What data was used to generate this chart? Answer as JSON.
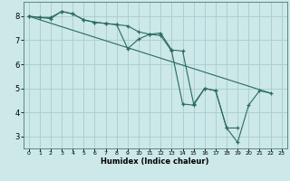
{
  "xlabel": "Humidex (Indice chaleur)",
  "xlim": [
    -0.5,
    23.5
  ],
  "ylim": [
    2.5,
    8.6
  ],
  "yticks": [
    3,
    4,
    5,
    6,
    7,
    8
  ],
  "xticks": [
    0,
    1,
    2,
    3,
    4,
    5,
    6,
    7,
    8,
    9,
    10,
    11,
    12,
    13,
    14,
    15,
    16,
    17,
    18,
    19,
    20,
    21,
    22,
    23
  ],
  "bg_color": "#cce8e8",
  "grid_color": "#aacccc",
  "line_color": "#2a6b5e",
  "line1_x": [
    0,
    1,
    2,
    3,
    4,
    5,
    6,
    7,
    8,
    9,
    10,
    11,
    12,
    13,
    14,
    15,
    16,
    17,
    18,
    19,
    20,
    21,
    22
  ],
  "line1_y": [
    8.0,
    7.95,
    7.9,
    8.2,
    8.1,
    7.85,
    7.75,
    7.7,
    7.65,
    6.65,
    7.05,
    7.25,
    7.2,
    6.55,
    4.35,
    4.3,
    5.0,
    4.9,
    3.35,
    2.75,
    4.3,
    4.9,
    4.8
  ],
  "line2_x": [
    0,
    1,
    2,
    3,
    4,
    5,
    6,
    7,
    8,
    9,
    10,
    11,
    12,
    13,
    14,
    15,
    16,
    17,
    18,
    19
  ],
  "line2_y": [
    8.0,
    7.95,
    7.95,
    8.2,
    8.1,
    7.85,
    7.75,
    7.7,
    7.65,
    7.6,
    7.35,
    7.25,
    7.3,
    6.6,
    6.55,
    4.35,
    5.0,
    4.9,
    3.35,
    3.35
  ],
  "line3_x": [
    0,
    22
  ],
  "line3_y": [
    8.0,
    4.8
  ]
}
